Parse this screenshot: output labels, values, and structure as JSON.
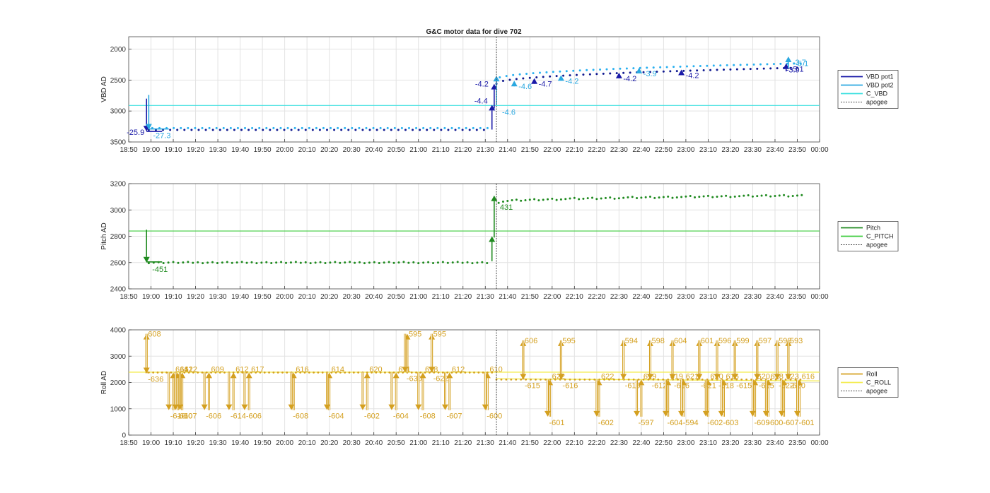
{
  "title": "G&C motor data for dive 702",
  "x_ticks": [
    "18:50",
    "19:00",
    "19:10",
    "19:20",
    "19:30",
    "19:40",
    "19:50",
    "20:00",
    "20:10",
    "20:20",
    "20:30",
    "20:40",
    "20:50",
    "21:00",
    "21:10",
    "21:20",
    "21:30",
    "21:40",
    "21:50",
    "22:00",
    "22:10",
    "22:20",
    "22:30",
    "22:40",
    "22:50",
    "23:00",
    "23:10",
    "23:20",
    "23:30",
    "23:40",
    "23:50",
    "00:00"
  ],
  "colors": {
    "vbd_pot1": "#1a1aa8",
    "vbd_pot2": "#2aa8e0",
    "c_vbd": "#3ee0e0",
    "vbd_dots_dark": "#101a90",
    "vbd_dots_light": "#2ab0f0",
    "pitch": "#1f8a1f",
    "c_pitch": "#3ecc3e",
    "roll": "#d4a020",
    "c_roll": "#f4ec50",
    "apogee": "#444444",
    "grid": "#e2e2e2"
  },
  "chart_data": [
    {
      "type": "scatter",
      "panel": "vbd",
      "ylabel": "VBD AD",
      "ylim": [
        3500,
        1800
      ],
      "y_reversed": true,
      "y_ticks": [
        2000,
        2500,
        3000,
        3500
      ],
      "xlim": [
        "18:50",
        "00:00"
      ],
      "grid": true,
      "legend_position": "right",
      "legend": [
        "VBD pot1",
        "VBD pot2",
        "C_VBD",
        "apogee"
      ],
      "c_vbd": 2910,
      "apogee_time": "21:35",
      "dots_before_apogee": {
        "start": "18:59",
        "end": "21:32",
        "value": 3290
      },
      "dots_after_apogee": {
        "start": "21:35",
        "end": "23:52",
        "value_start": 2490,
        "value_end": 2230
      },
      "moves": [
        {
          "time": "18:58",
          "from": 2800,
          "to": 3330,
          "label": "-25.9",
          "series": "pot1"
        },
        {
          "time": "18:59",
          "from": 2740,
          "to": 3300,
          "label": "-27.3",
          "series": "pot2"
        },
        {
          "time": "21:33",
          "from": 3300,
          "to": 2900,
          "label": "-4.4",
          "series": "pot1"
        },
        {
          "time": "21:34",
          "from": 2960,
          "to": 2560,
          "label": "-4.2",
          "series": "pot1"
        },
        {
          "time": "21:35",
          "from": 2900,
          "to": 2430,
          "label": "-4.6",
          "series": "pot2"
        },
        {
          "time": "21:43",
          "from": 2560,
          "to": 2510,
          "label": "-4.6",
          "series": "pot2"
        },
        {
          "time": "21:52",
          "from": 2520,
          "to": 2470,
          "label": "-4.7",
          "series": "pot1"
        },
        {
          "time": "22:04",
          "from": 2490,
          "to": 2420,
          "label": "-4.2",
          "series": "pot2"
        },
        {
          "time": "22:30",
          "from": 2430,
          "to": 2380,
          "label": "-4.2",
          "series": "pot1"
        },
        {
          "time": "22:39",
          "from": 2390,
          "to": 2300,
          "label": "-3.9",
          "series": "pot2"
        },
        {
          "time": "22:58",
          "from": 2370,
          "to": 2330,
          "label": "-4.2",
          "series": "pot1"
        },
        {
          "time": "23:45",
          "from": 2360,
          "to": 2230,
          "label": "-5.1",
          "series": "pot1"
        },
        {
          "time": "23:46",
          "from": 2310,
          "to": 2120,
          "label": "-3.7",
          "series": "pot2"
        }
      ],
      "extra_labels": [
        {
          "time": "23:48",
          "value": 2330,
          "label": "-3.9",
          "series": "pot1"
        },
        {
          "time": "23:52",
          "value": 2230,
          "label": "-5.1",
          "series": "pot2"
        }
      ]
    },
    {
      "type": "scatter",
      "panel": "pitch",
      "ylabel": "Pitch AD",
      "ylim": [
        2400,
        3200
      ],
      "y_ticks": [
        2400,
        2600,
        2800,
        3000,
        3200
      ],
      "xlim": [
        "18:50",
        "00:00"
      ],
      "grid": true,
      "legend_position": "right",
      "legend": [
        "Pitch",
        "C_PITCH",
        "apogee"
      ],
      "c_pitch": 2840,
      "apogee_time": "21:35",
      "dots_before_apogee": {
        "start": "18:59",
        "end": "21:33",
        "value": 2600
      },
      "dots_after_apogee": {
        "start": "21:36",
        "end": "23:52",
        "value_start": 3060,
        "value_end": 3110
      },
      "moves": [
        {
          "time": "18:58",
          "from": 2850,
          "to": 2600,
          "label": "-451"
        },
        {
          "time": "21:33",
          "from": 2610,
          "to": 2800,
          "label": ""
        },
        {
          "time": "21:34",
          "from": 2790,
          "to": 3110,
          "label": "431"
        }
      ]
    },
    {
      "type": "scatter",
      "panel": "roll",
      "ylabel": "Roll AD",
      "ylim": [
        0,
        4000
      ],
      "y_ticks": [
        0,
        1000,
        2000,
        3000,
        4000
      ],
      "xlim": [
        "18:50",
        "00:00"
      ],
      "grid": true,
      "legend_position": "right",
      "legend": [
        "Roll",
        "C_ROLL",
        "apogee"
      ],
      "c_roll": 2390,
      "apogee_time": "21:35",
      "dots_before_apogee": {
        "start": "18:59",
        "end": "21:33",
        "value": 2380
      },
      "dots_after_apogee": {
        "start": "21:35",
        "end": "23:52",
        "value": 2110
      },
      "up_moves": [
        {
          "time": "18:58",
          "from": 2350,
          "to": 3850,
          "label": "608",
          "lbl": "above"
        },
        {
          "time": "19:10",
          "from": 950,
          "to": 2380,
          "label": "614",
          "lbl": "side"
        },
        {
          "time": "19:12",
          "from": 950,
          "to": 2380,
          "label": "612",
          "lbl": "side"
        },
        {
          "time": "19:14",
          "from": 950,
          "to": 2380,
          "label": "612",
          "lbl": "side"
        },
        {
          "time": "19:26",
          "from": 950,
          "to": 2380,
          "label": "609",
          "lbl": "side"
        },
        {
          "time": "19:37",
          "from": 950,
          "to": 2380,
          "label": "612",
          "lbl": "side"
        },
        {
          "time": "19:44",
          "from": 950,
          "to": 2380,
          "label": "617",
          "lbl": "side"
        },
        {
          "time": "20:04",
          "from": 950,
          "to": 2380,
          "label": "616",
          "lbl": "side"
        },
        {
          "time": "20:20",
          "from": 950,
          "to": 2380,
          "label": "614",
          "lbl": "side"
        },
        {
          "time": "20:37",
          "from": 950,
          "to": 2380,
          "label": "620",
          "lbl": "side"
        },
        {
          "time": "20:50",
          "from": 950,
          "to": 2380,
          "label": "611",
          "lbl": "side"
        },
        {
          "time": "20:55",
          "from": 2380,
          "to": 3850,
          "label": "595",
          "lbl": "above"
        },
        {
          "time": "21:02",
          "from": 950,
          "to": 2380,
          "label": "618",
          "lbl": "side"
        },
        {
          "time": "21:06",
          "from": 2380,
          "to": 3850,
          "label": "595",
          "lbl": "above"
        },
        {
          "time": "21:14",
          "from": 950,
          "to": 2380,
          "label": "612",
          "lbl": "side"
        },
        {
          "time": "21:31",
          "from": 950,
          "to": 2380,
          "label": "610",
          "lbl": "side"
        },
        {
          "time": "21:47",
          "from": 2110,
          "to": 3600,
          "label": "606",
          "lbl": "above"
        },
        {
          "time": "21:59",
          "from": 700,
          "to": 2110,
          "label": "622",
          "lbl": "side"
        },
        {
          "time": "22:04",
          "from": 2110,
          "to": 3600,
          "label": "595",
          "lbl": "above"
        },
        {
          "time": "22:21",
          "from": 700,
          "to": 2110,
          "label": "622",
          "lbl": "side"
        },
        {
          "time": "22:32",
          "from": 2110,
          "to": 3600,
          "label": "594",
          "lbl": "above"
        },
        {
          "time": "22:40",
          "from": 700,
          "to": 2110,
          "label": "619",
          "lbl": "side"
        },
        {
          "time": "22:44",
          "from": 2110,
          "to": 3600,
          "label": "598",
          "lbl": "above"
        },
        {
          "time": "22:52",
          "from": 700,
          "to": 2110,
          "label": "619",
          "lbl": "side"
        },
        {
          "time": "22:54",
          "from": 2110,
          "to": 3600,
          "label": "604",
          "lbl": "above"
        },
        {
          "time": "22:59",
          "from": 700,
          "to": 2110,
          "label": "621",
          "lbl": "side"
        },
        {
          "time": "23:06",
          "from": 2110,
          "to": 3600,
          "label": "601",
          "lbl": "above"
        },
        {
          "time": "23:10",
          "from": 700,
          "to": 2110,
          "label": "620",
          "lbl": "side"
        },
        {
          "time": "23:14",
          "from": 2110,
          "to": 3600,
          "label": "596",
          "lbl": "above"
        },
        {
          "time": "23:17",
          "from": 700,
          "to": 2110,
          "label": "616",
          "lbl": "side"
        },
        {
          "time": "23:22",
          "from": 2110,
          "to": 3600,
          "label": "599",
          "lbl": "above"
        },
        {
          "time": "23:31",
          "from": 700,
          "to": 2110,
          "label": "620",
          "lbl": "side"
        },
        {
          "time": "23:32",
          "from": 2110,
          "to": 3600,
          "label": "597",
          "lbl": "above"
        },
        {
          "time": "23:37",
          "from": 700,
          "to": 2110,
          "label": "618",
          "lbl": "side"
        },
        {
          "time": "23:41",
          "from": 2110,
          "to": 3600,
          "label": "598",
          "lbl": "above"
        },
        {
          "time": "23:44",
          "from": 700,
          "to": 2110,
          "label": "623",
          "lbl": "side"
        },
        {
          "time": "23:46",
          "from": 2110,
          "to": 3600,
          "label": "593",
          "lbl": "above"
        },
        {
          "time": "23:51",
          "from": 700,
          "to": 2110,
          "label": "616",
          "lbl": "side"
        }
      ],
      "down_moves": [
        {
          "time": "18:58",
          "from": 3850,
          "to": 2350,
          "label": "-636",
          "lbl": "below"
        },
        {
          "time": "19:08",
          "from": 2380,
          "to": 950,
          "label": "-616",
          "lbl": "below"
        },
        {
          "time": "19:11",
          "from": 2380,
          "to": 950,
          "label": "-610",
          "lbl": "below"
        },
        {
          "time": "19:13",
          "from": 2380,
          "to": 950,
          "label": "-607",
          "lbl": "below"
        },
        {
          "time": "19:24",
          "from": 2380,
          "to": 950,
          "label": "-606",
          "lbl": "below"
        },
        {
          "time": "19:35",
          "from": 2380,
          "to": 950,
          "label": "-614",
          "lbl": "below"
        },
        {
          "time": "19:42",
          "from": 2380,
          "to": 950,
          "label": "-606",
          "lbl": "below"
        },
        {
          "time": "20:03",
          "from": 2380,
          "to": 950,
          "label": "-608",
          "lbl": "below"
        },
        {
          "time": "20:19",
          "from": 2380,
          "to": 950,
          "label": "-604",
          "lbl": "below"
        },
        {
          "time": "20:35",
          "from": 2380,
          "to": 950,
          "label": "-602",
          "lbl": "below"
        },
        {
          "time": "20:48",
          "from": 2380,
          "to": 950,
          "label": "-604",
          "lbl": "below"
        },
        {
          "time": "20:54",
          "from": 3850,
          "to": 2380,
          "label": "-630",
          "lbl": "below"
        },
        {
          "time": "21:00",
          "from": 2380,
          "to": 950,
          "label": "-608",
          "lbl": "below"
        },
        {
          "time": "21:06",
          "from": 3850,
          "to": 2380,
          "label": "-622",
          "lbl": "below"
        },
        {
          "time": "21:12",
          "from": 2380,
          "to": 950,
          "label": "-607",
          "lbl": "below"
        },
        {
          "time": "21:30",
          "from": 2380,
          "to": 950,
          "label": "-600",
          "lbl": "below"
        },
        {
          "time": "21:47",
          "from": 3600,
          "to": 2110,
          "label": "-615",
          "lbl": "below"
        },
        {
          "time": "21:58",
          "from": 2110,
          "to": 700,
          "label": "-601",
          "lbl": "below"
        },
        {
          "time": "22:04",
          "from": 3600,
          "to": 2110,
          "label": "-616",
          "lbl": "below"
        },
        {
          "time": "22:20",
          "from": 2110,
          "to": 700,
          "label": "-602",
          "lbl": "below"
        },
        {
          "time": "22:32",
          "from": 3600,
          "to": 2110,
          "label": "-619",
          "lbl": "below"
        },
        {
          "time": "22:38",
          "from": 2110,
          "to": 700,
          "label": "-597",
          "lbl": "below"
        },
        {
          "time": "22:44",
          "from": 3600,
          "to": 2110,
          "label": "-612",
          "lbl": "below"
        },
        {
          "time": "22:51",
          "from": 2110,
          "to": 700,
          "label": "-604",
          "lbl": "below"
        },
        {
          "time": "22:54",
          "from": 3600,
          "to": 2110,
          "label": "-616",
          "lbl": "below"
        },
        {
          "time": "22:58",
          "from": 2110,
          "to": 700,
          "label": "-594",
          "lbl": "below"
        },
        {
          "time": "23:06",
          "from": 3600,
          "to": 2110,
          "label": "-621",
          "lbl": "below"
        },
        {
          "time": "23:09",
          "from": 2110,
          "to": 700,
          "label": "-602",
          "lbl": "below"
        },
        {
          "time": "23:14",
          "from": 3600,
          "to": 2110,
          "label": "-618",
          "lbl": "below"
        },
        {
          "time": "23:16",
          "from": 2110,
          "to": 700,
          "label": "-603",
          "lbl": "below"
        },
        {
          "time": "23:22",
          "from": 3600,
          "to": 2110,
          "label": "-615",
          "lbl": "below"
        },
        {
          "time": "23:30",
          "from": 2110,
          "to": 700,
          "label": "-609",
          "lbl": "below"
        },
        {
          "time": "23:32",
          "from": 3600,
          "to": 2110,
          "label": "-615",
          "lbl": "below"
        },
        {
          "time": "23:36",
          "from": 2110,
          "to": 700,
          "label": "-600",
          "lbl": "below"
        },
        {
          "time": "23:41",
          "from": 3600,
          "to": 2110,
          "label": "-622",
          "lbl": "below"
        },
        {
          "time": "23:43",
          "from": 2110,
          "to": 700,
          "label": "-607",
          "lbl": "below"
        },
        {
          "time": "23:46",
          "from": 3600,
          "to": 2110,
          "label": "-620",
          "lbl": "below"
        },
        {
          "time": "23:50",
          "from": 2110,
          "to": 700,
          "label": "-601",
          "lbl": "below"
        }
      ]
    }
  ]
}
